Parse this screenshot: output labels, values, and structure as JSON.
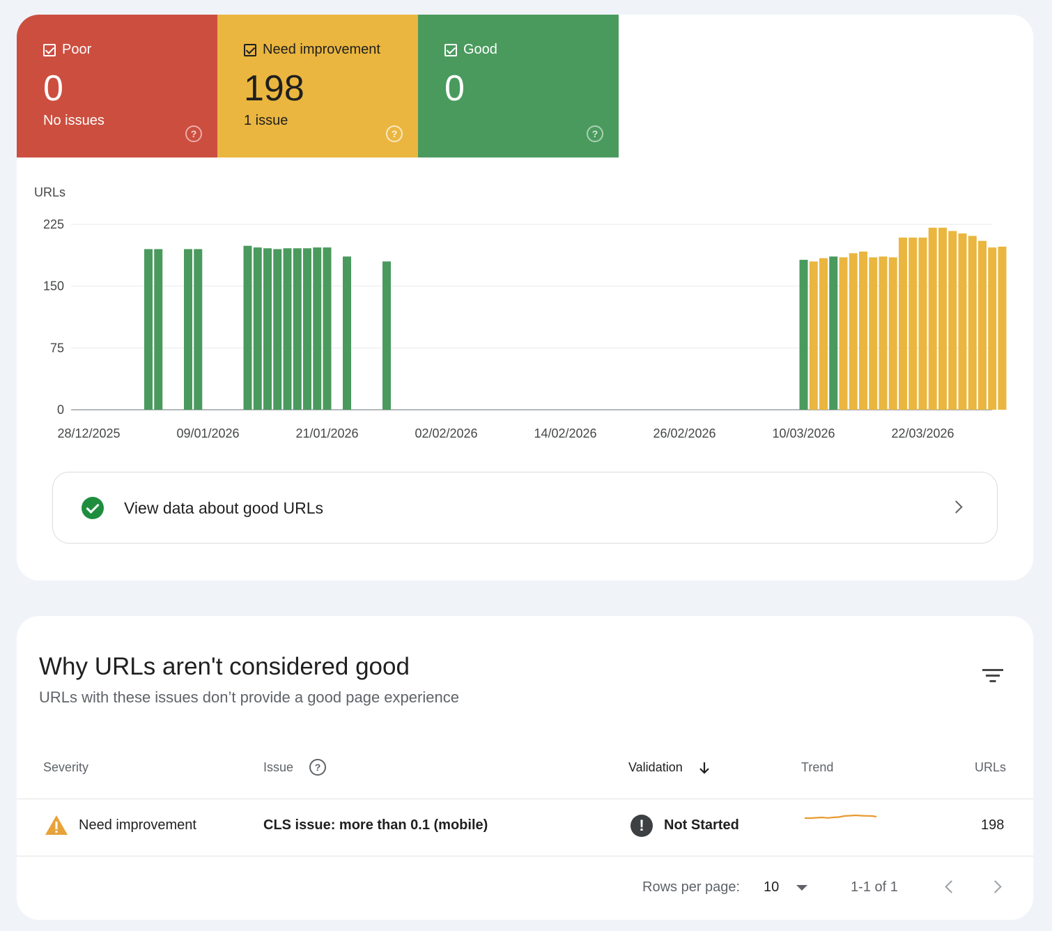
{
  "summary_tiles": [
    {
      "label": "Poor",
      "value": "0",
      "sub": "No issues",
      "color": "#cc4e3f"
    },
    {
      "label": "Need improvement",
      "value": "198",
      "sub": "1 issue",
      "color": "#eab63f"
    },
    {
      "label": "Good",
      "value": "0",
      "sub": "",
      "color": "#4a9a5e"
    }
  ],
  "chart_data": {
    "type": "bar",
    "stacked": true,
    "ylabel": "URLs",
    "ylim": [
      0,
      225
    ],
    "yticks": [
      0,
      75,
      150,
      225
    ],
    "xticks": [
      "28/12/2025",
      "09/01/2026",
      "21/01/2026",
      "02/02/2026",
      "14/02/2026",
      "26/02/2026",
      "10/03/2026",
      "22/03/2026"
    ],
    "x_start": "2025-12-28",
    "grid": true,
    "series": [
      {
        "name": "Good",
        "color": "#4a9a5e",
        "points": [
          [
            "2026-01-03",
            195
          ],
          [
            "2026-01-04",
            195
          ],
          [
            "2026-01-07",
            195
          ],
          [
            "2026-01-08",
            195
          ],
          [
            "2026-01-13",
            199
          ],
          [
            "2026-01-14",
            197
          ],
          [
            "2026-01-15",
            196
          ],
          [
            "2026-01-16",
            195
          ],
          [
            "2026-01-17",
            196
          ],
          [
            "2026-01-18",
            196
          ],
          [
            "2026-01-19",
            196
          ],
          [
            "2026-01-20",
            197
          ],
          [
            "2026-01-21",
            197
          ],
          [
            "2026-01-23",
            186
          ],
          [
            "2026-01-27",
            180
          ],
          [
            "2026-03-10",
            182
          ],
          [
            "2026-03-13",
            186
          ]
        ]
      },
      {
        "name": "Need improvement",
        "color": "#eab63f",
        "points": [
          [
            "2026-03-11",
            180
          ],
          [
            "2026-03-12",
            184
          ],
          [
            "2026-03-14",
            185
          ],
          [
            "2026-03-15",
            190
          ],
          [
            "2026-03-16",
            192
          ],
          [
            "2026-03-17",
            185
          ],
          [
            "2026-03-18",
            186
          ],
          [
            "2026-03-19",
            185
          ],
          [
            "2026-03-20",
            209
          ],
          [
            "2026-03-21",
            209
          ],
          [
            "2026-03-22",
            209
          ],
          [
            "2026-03-23",
            221
          ],
          [
            "2026-03-24",
            221
          ],
          [
            "2026-03-25",
            217
          ],
          [
            "2026-03-26",
            214
          ],
          [
            "2026-03-27",
            211
          ],
          [
            "2026-03-28",
            205
          ],
          [
            "2026-03-29",
            197
          ],
          [
            "2026-03-30",
            198
          ]
        ]
      }
    ]
  },
  "good_link": {
    "label": "View data about good URLs"
  },
  "issues_section": {
    "title": "Why URLs aren't considered good",
    "subtitle": "URLs with these issues don’t provide a good page experience",
    "columns": {
      "severity": "Severity",
      "issue": "Issue",
      "validation": "Validation",
      "trend": "Trend",
      "urls": "URLs"
    },
    "rows": [
      {
        "severity": "Need improvement",
        "issue": "CLS issue: more than 0.1 (mobile)",
        "validation": "Not Started",
        "urls": "198"
      }
    ],
    "trend_color": "#e89a2c"
  },
  "pagination": {
    "rows_per_page_label": "Rows per page:",
    "rows_per_page": "10",
    "range": "1-1 of 1"
  }
}
